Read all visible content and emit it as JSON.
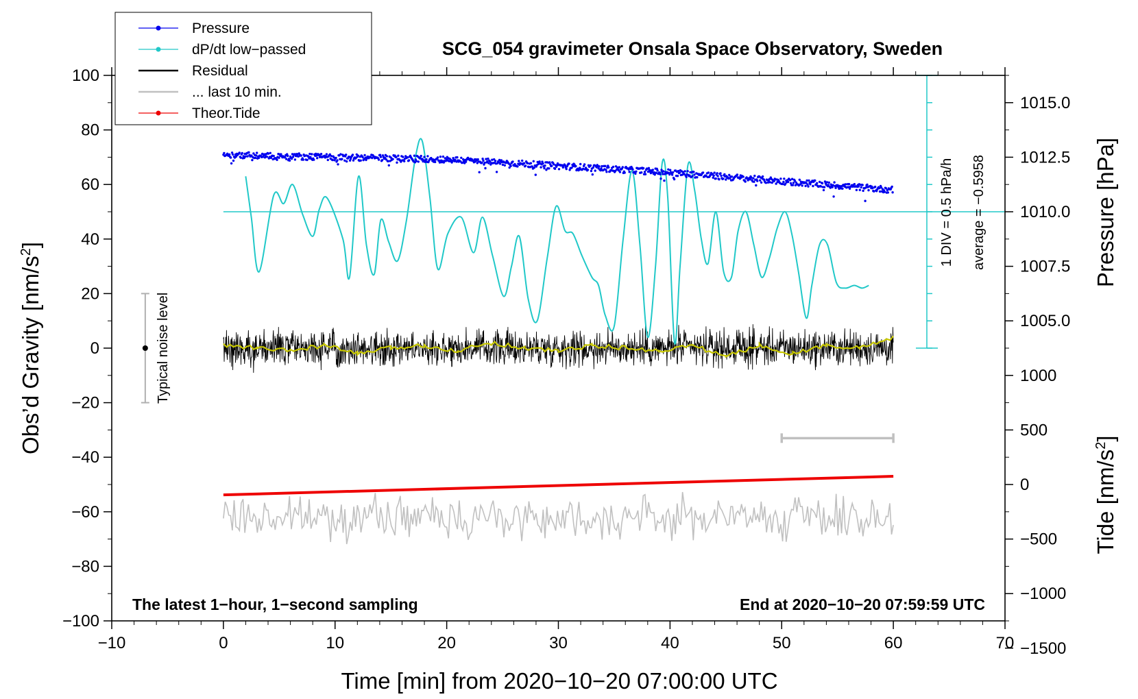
{
  "chart_data": {
    "type": "line",
    "title": "SCG_054 gravimeter Onsala Space Observatory, Sweden",
    "xlabel": "Time [min] from 2020−10−20 07:00:00 UTC",
    "ylabel_prefix": "Obs’d Gravity [nm/s",
    "ylabel_sup": "2",
    "ylabel_suffix": "]",
    "y2label": "Pressure [hPa]",
    "y3label_prefix": "Tide [nm/s",
    "y3label_sup": "2",
    "y3label_suffix": "]",
    "xlim": [
      -10,
      70
    ],
    "ylim": [
      -100,
      100
    ],
    "x_ticks": [
      "−10",
      "0",
      "10",
      "20",
      "30",
      "40",
      "50",
      "60",
      "70"
    ],
    "x_tick_values": [
      -10,
      0,
      10,
      20,
      30,
      40,
      50,
      60,
      70
    ],
    "y_ticks": [
      "100",
      "80",
      "60",
      "40",
      "20",
      "0",
      "−20",
      "−40",
      "−60",
      "−80",
      "−100"
    ],
    "y_tick_values": [
      100,
      80,
      60,
      40,
      20,
      0,
      -20,
      -40,
      -60,
      -80,
      -100
    ],
    "pressure_axis": {
      "ticks": [
        "1015.0",
        "1012.5",
        "1010.0",
        "1007.5",
        "1005.0"
      ],
      "values": [
        1015.0,
        1012.5,
        1010.0,
        1007.5,
        1005.0
      ],
      "ref_hpa": 1010.0,
      "ref_gravity": 50,
      "hpa_per_gravity_unit": 0.125
    },
    "tide_axis": {
      "ticks": [
        "1000",
        "500",
        "0",
        "−500",
        "−1000",
        "−1500"
      ],
      "values": [
        1000,
        500,
        0,
        -500,
        -1000,
        -1500
      ],
      "gravity_per_nms2": 0.04,
      "offset_gravity": -50
    },
    "legend": [
      {
        "label": "Pressure",
        "color": "#0000ee",
        "marker": "dot"
      },
      {
        "label": "dP/dt low−passed",
        "color": "#20c8c8",
        "marker": "dot"
      },
      {
        "label": "Residual",
        "color": "#000000",
        "marker": "none"
      },
      {
        "label": "... last 10 min.",
        "color": "#c0c0c0",
        "marker": "none"
      },
      {
        "label": "Theor.Tide",
        "color": "#ee0000",
        "marker": "dot"
      }
    ],
    "series": [
      {
        "name": "Pressure",
        "axis": "pressure",
        "color": "#0000ee",
        "x": [
          0,
          10,
          20,
          30,
          40,
          50,
          60
        ],
        "values": [
          1012.6,
          1012.5,
          1012.4,
          1012.1,
          1011.8,
          1011.4,
          1011.0
        ],
        "scatter_hpa": 0.15
      },
      {
        "name": "dP/dt low−passed",
        "axis": "gravity",
        "color": "#20c8c8",
        "x": [
          2,
          2.5,
          3.2,
          4.5,
          5.4,
          6.2,
          7.1,
          8.0,
          8.6,
          9.3,
          10.7,
          11.3,
          12.1,
          12.8,
          13.5,
          14.1,
          14.8,
          15.6,
          16.4,
          17.2,
          17.8,
          18.5,
          19.2,
          20.1,
          21.3,
          22.4,
          23.2,
          24.1,
          25.1,
          25.8,
          26.5,
          27.3,
          28.1,
          29.0,
          29.8,
          30.6,
          31.3,
          32.1,
          33.0,
          33.6,
          34.2,
          35.0,
          35.8,
          36.6,
          37.3,
          38.0,
          38.7,
          39.3,
          39.8,
          40.4,
          40.9,
          41.6,
          42.2,
          42.8,
          43.4,
          44.1,
          44.8,
          45.5,
          46.1,
          46.8,
          47.5,
          48.2,
          48.9,
          49.6,
          50.3,
          50.9,
          51.5,
          52.2,
          52.7,
          53.4,
          54.1,
          54.9,
          55.7,
          56.5,
          57.2,
          57.8
        ],
        "values": [
          63,
          48,
          28,
          56,
          53,
          60,
          49,
          41,
          51,
          55,
          40,
          26,
          63,
          38,
          27,
          47,
          39,
          32,
          47,
          70,
          76,
          55,
          29,
          42,
          48,
          35,
          48,
          34,
          19,
          30,
          41,
          18,
          10,
          33,
          52,
          43,
          42,
          34,
          26,
          23,
          12,
          8,
          40,
          65,
          38,
          4,
          30,
          68,
          55,
          2,
          30,
          67,
          58,
          40,
          31,
          50,
          28,
          26,
          43,
          50,
          38,
          26,
          33,
          44,
          50,
          42,
          28,
          11,
          23,
          38,
          38,
          24,
          22,
          23,
          22,
          23
        ]
      },
      {
        "name": "Residual",
        "axis": "gravity",
        "color": "#000000",
        "x_start": 0,
        "x_end": 60,
        "mean": 0,
        "noise_amplitude": 4
      },
      {
        "name": "Residual smoothed",
        "axis": "gravity",
        "color": "#c8c800",
        "x": [
          0,
          3,
          6,
          9,
          12,
          15,
          18,
          21,
          24,
          27,
          30,
          33,
          36,
          39,
          42,
          45,
          48,
          51,
          54,
          57,
          60
        ],
        "values": [
          1,
          0,
          -1,
          1,
          -2,
          0,
          1,
          -1,
          2,
          0,
          -1,
          1,
          0,
          -1,
          1,
          -3,
          1,
          -2,
          1,
          0,
          4
        ]
      },
      {
        "name": "... last 10 min.",
        "axis": "gravity",
        "color": "#c0c0c0",
        "x_start": 0,
        "x_end": 60,
        "mean": -62,
        "noise_amplitude": 5
      },
      {
        "name": "Theor.Tide",
        "axis": "tide",
        "color": "#ee0000",
        "x": [
          0,
          60
        ],
        "values": [
          -95,
          75
        ]
      }
    ],
    "annotations": {
      "noise_label": "Typical noise level",
      "noise_x": -7,
      "noise_range": [
        -20,
        20
      ],
      "last10_bar": [
        50,
        60
      ],
      "last10_bar_y": -33,
      "dp_scale_label": "1 DIV = 0.5 hPa/h",
      "dp_average_label": "average = −0.5958",
      "dp_scale_axis_x": 63,
      "dp_scale_range": [
        0,
        100
      ],
      "dp_ref_line_y": 50,
      "footer_left": "The latest 1−hour, 1−second sampling",
      "footer_right": "End at 2020−10−20 07:59:59 UTC"
    }
  }
}
